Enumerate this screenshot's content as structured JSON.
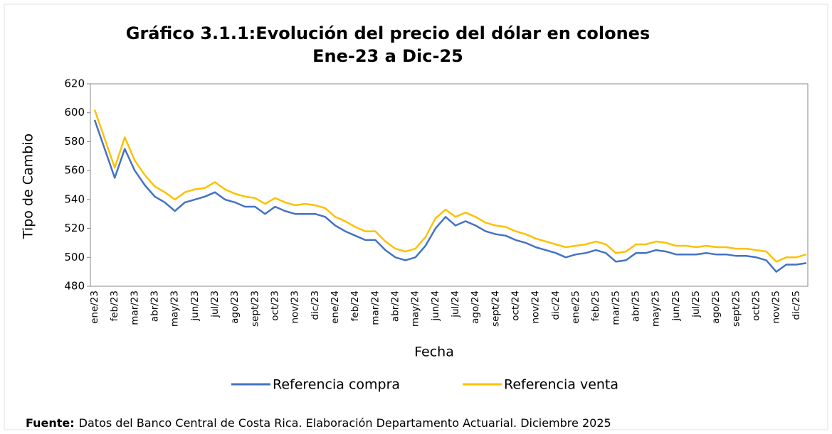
{
  "chart_data": {
    "type": "line",
    "title": "Gráfico 3.1.1:Evolución del precio del dólar en colones",
    "subtitle": "Ene-23 a Dic-25",
    "x_label": "Fecha",
    "y_label": "Tipo de Cambio",
    "source_label": "Fuente:",
    "source_text": "Datos del Banco Central de Costa Rica. Elaboración Departamento Actuarial. Diciembre 2025",
    "categories": [
      "ene/23",
      null,
      "feb/23",
      null,
      "mar/23",
      null,
      "abr/23",
      null,
      "may/23",
      null,
      "jun/23",
      null,
      "jul/23",
      null,
      "ago/23",
      null,
      "sept/23",
      null,
      "oct/23",
      null,
      "nov/23",
      null,
      "dic/23",
      null,
      "ene/24",
      null,
      "feb/24",
      null,
      "mar/24",
      null,
      "abr/24",
      null,
      "may/24",
      null,
      "jun/24",
      null,
      "jul/24",
      null,
      "ago/24",
      null,
      "sept/24",
      null,
      "oct/24",
      null,
      "nov/24",
      null,
      "dic/24",
      null,
      "ene/25",
      null,
      "feb/25",
      null,
      "mar/25",
      null,
      "abr/25",
      null,
      "may/25",
      null,
      "jun/25",
      null,
      "jul/25",
      null,
      "ago/25",
      null,
      "sept/25",
      null,
      "oct/25",
      null,
      "nov/25",
      null,
      "dic/25",
      null
    ],
    "series": [
      {
        "name": "Referencia compra",
        "color": "#4472c4",
        "values": [
          595,
          575,
          555,
          575,
          560,
          550,
          542,
          538,
          532,
          538,
          540,
          542,
          545,
          540,
          538,
          535,
          535,
          530,
          535,
          532,
          530,
          530,
          530,
          528,
          522,
          518,
          515,
          512,
          512,
          505,
          500,
          498,
          500,
          508,
          520,
          528,
          522,
          525,
          522,
          518,
          516,
          515,
          512,
          510,
          507,
          505,
          503,
          500,
          502,
          503,
          505,
          503,
          497,
          498,
          503,
          503,
          505,
          504,
          502,
          502,
          502,
          503,
          502,
          502,
          501,
          501,
          500,
          498,
          490,
          495,
          495,
          496
        ]
      },
      {
        "name": "Referencia venta",
        "color": "#ffc000",
        "values": [
          602,
          582,
          562,
          583,
          567,
          557,
          549,
          545,
          540,
          545,
          547,
          548,
          552,
          547,
          544,
          542,
          541,
          537,
          541,
          538,
          536,
          537,
          536,
          534,
          528,
          525,
          521,
          518,
          518,
          511,
          506,
          504,
          506,
          514,
          527,
          533,
          528,
          531,
          528,
          524,
          522,
          521,
          518,
          516,
          513,
          511,
          509,
          507,
          508,
          509,
          511,
          509,
          503,
          504,
          509,
          509,
          511,
          510,
          508,
          508,
          507,
          508,
          507,
          507,
          506,
          506,
          505,
          504,
          497,
          500,
          500,
          502
        ]
      }
    ],
    "ylim": [
      480,
      620
    ],
    "yticks": [
      480,
      500,
      520,
      540,
      560,
      580,
      600,
      620
    ],
    "grid": false,
    "legend": "bottom"
  }
}
